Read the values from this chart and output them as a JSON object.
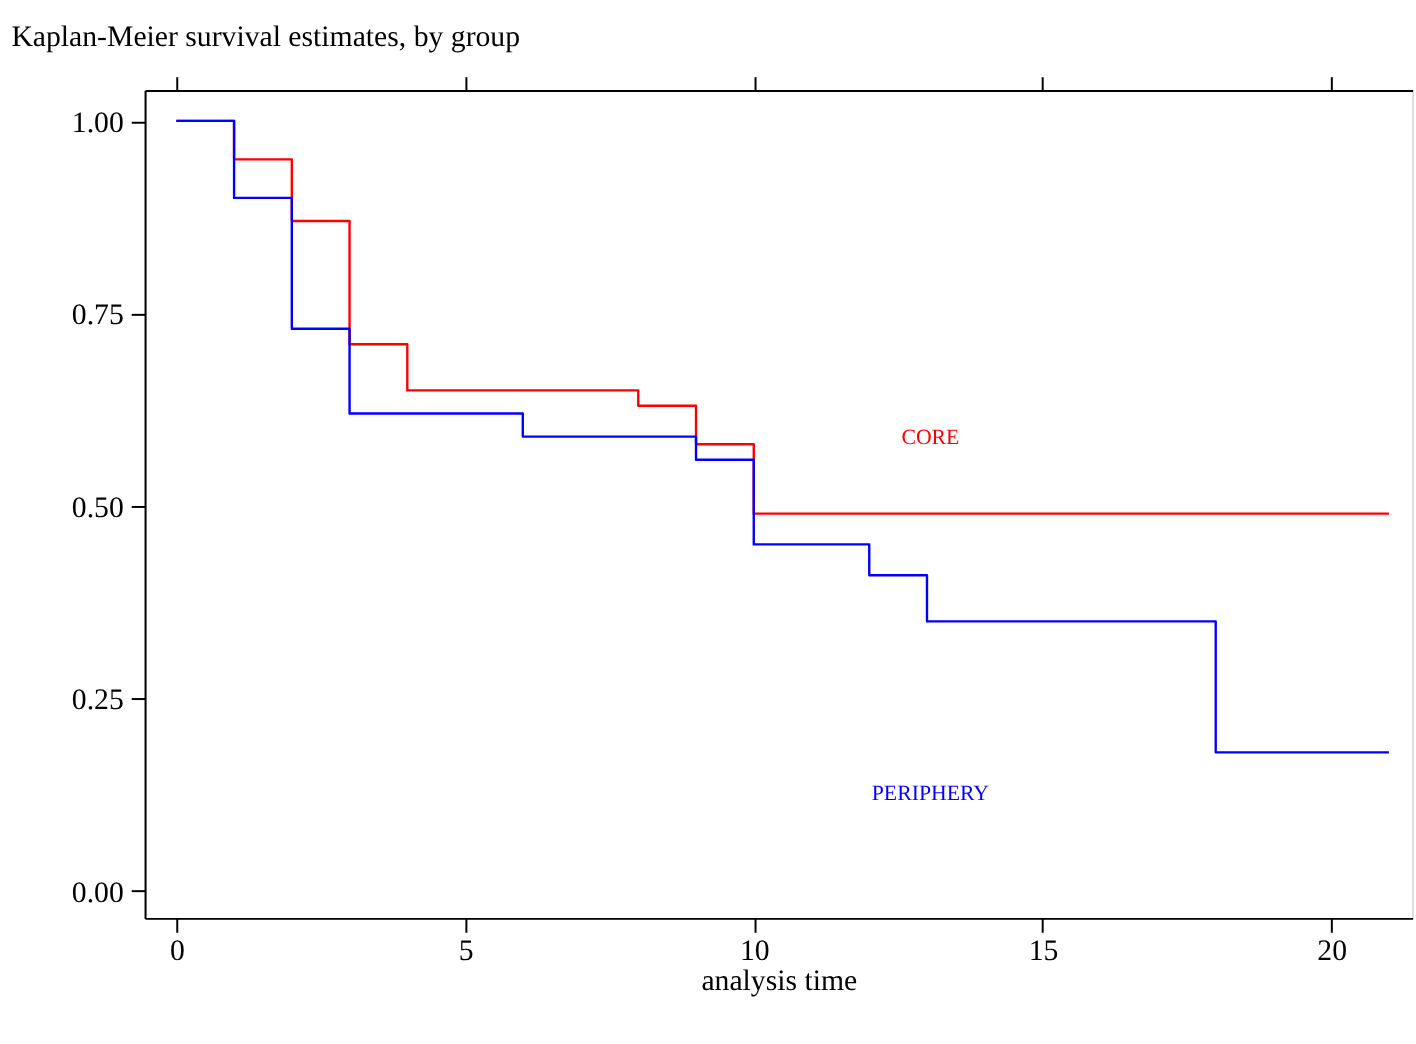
{
  "chart_data": {
    "type": "step",
    "title": "Kaplan-Meier survival estimates, by group",
    "xlabel": "analysis time",
    "series": [
      {
        "name": "CORE",
        "color": "#ff0000",
        "x": [
          0,
          1,
          2,
          3,
          4,
          8,
          9,
          10,
          21
        ],
        "values": [
          1.0,
          0.95,
          0.87,
          0.71,
          0.65,
          0.63,
          0.58,
          0.49,
          0.49
        ]
      },
      {
        "name": "PERIPHERY",
        "color": "#0000ff",
        "x": [
          0,
          1,
          2,
          3,
          6,
          9,
          10,
          12,
          13,
          18,
          21
        ],
        "values": [
          1.0,
          0.9,
          0.73,
          0.62,
          0.59,
          0.56,
          0.45,
          0.41,
          0.35,
          0.18,
          0.18
        ]
      }
    ],
    "xlim": [
      -0.55,
      21.4
    ],
    "xticks": [
      0,
      5,
      10,
      15,
      20
    ],
    "ylim": [
      -0.035,
      1.04
    ],
    "yticks": [
      {
        "value": 0,
        "label": "0.00"
      },
      {
        "value": 0.25,
        "label": "0.25"
      },
      {
        "value": 0.5,
        "label": "0.50"
      },
      {
        "value": 0.75,
        "label": "0.75"
      },
      {
        "value": 1,
        "label": "1.00"
      }
    ],
    "grid": false,
    "line_style": "solid",
    "marker": "none"
  }
}
